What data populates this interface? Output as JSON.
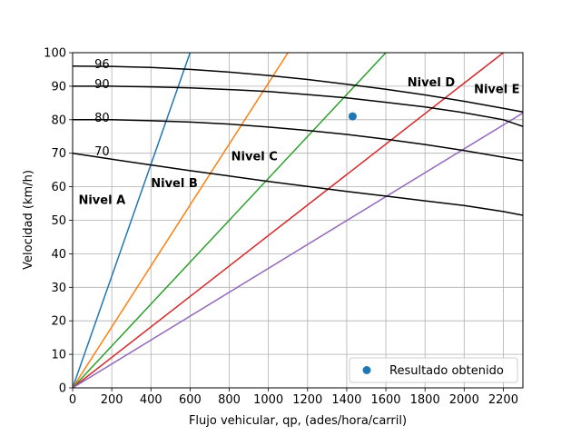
{
  "chart_data": {
    "type": "line",
    "title": "",
    "xlabel": "Flujo vehicular, qp, (ades/hora/carril)",
    "ylabel": "Velocidad (km/h)",
    "xlim": [
      0,
      2300
    ],
    "ylim": [
      0,
      100
    ],
    "xticks": [
      0,
      200,
      400,
      600,
      800,
      1000,
      1200,
      1400,
      1600,
      1800,
      2000,
      2200
    ],
    "yticks": [
      0,
      10,
      20,
      30,
      40,
      50,
      60,
      70,
      80,
      90,
      100
    ],
    "grid": true,
    "legend_placement": "lower-right",
    "speed_curves": [
      {
        "label": "96",
        "x": [
          0,
          200,
          400,
          600,
          800,
          1000,
          1200,
          1400,
          1600,
          1800,
          2000,
          2200,
          2300
        ],
        "y": [
          96.0,
          95.9,
          95.6,
          95.0,
          94.2,
          93.2,
          92.0,
          90.6,
          89.1,
          87.4,
          85.5,
          83.4,
          82.3
        ]
      },
      {
        "label": "90",
        "x": [
          0,
          200,
          400,
          600,
          800,
          1000,
          1200,
          1400,
          1600,
          1800,
          2000,
          2200,
          2300
        ],
        "y": [
          90.0,
          90.0,
          89.8,
          89.5,
          89.0,
          88.4,
          87.5,
          86.5,
          85.2,
          83.8,
          82.1,
          80.0,
          78.0
        ]
      },
      {
        "label": "80",
        "x": [
          0,
          200,
          400,
          600,
          800,
          1000,
          1200,
          1400,
          1600,
          1800,
          2000,
          2200,
          2300
        ],
        "y": [
          80.0,
          80.0,
          79.7,
          79.3,
          78.7,
          77.8,
          76.8,
          75.6,
          74.2,
          72.6,
          70.8,
          68.8,
          67.8
        ]
      },
      {
        "label": "70",
        "x": [
          0,
          200,
          400,
          600,
          800,
          1000,
          1200,
          1400,
          1600,
          1800,
          2000,
          2200,
          2300
        ],
        "y": [
          70.0,
          68.2,
          66.5,
          64.8,
          63.2,
          61.6,
          60.1,
          58.6,
          57.2,
          55.8,
          54.4,
          52.6,
          51.5
        ]
      }
    ],
    "los_lines": [
      {
        "label": "Nivel A",
        "color": "#1f77b4",
        "x": [
          0,
          600
        ],
        "y": [
          0,
          100
        ]
      },
      {
        "label": "Nivel B",
        "color": "#ff7f0e",
        "x": [
          0,
          1100
        ],
        "y": [
          0,
          100
        ]
      },
      {
        "label": "Nivel C",
        "color": "#2ca02c",
        "x": [
          0,
          1600
        ],
        "y": [
          0,
          100
        ]
      },
      {
        "label": "Nivel D",
        "color": "#d62728",
        "x": [
          0,
          2200
        ],
        "y": [
          0,
          100
        ]
      },
      {
        "label": "Nivel E",
        "color": "#9467bd",
        "x": [
          0,
          2300
        ],
        "y": [
          0,
          82
        ]
      }
    ],
    "level_labels": [
      {
        "text": "Nivel A",
        "x": 30,
        "y": 56
      },
      {
        "text": "Nivel B",
        "x": 400,
        "y": 61
      },
      {
        "text": "Nivel C",
        "x": 810,
        "y": 69
      },
      {
        "text": "Nivel D",
        "x": 1710,
        "y": 91
      },
      {
        "text": "Nivel E",
        "x": 2050,
        "y": 89
      }
    ],
    "curve_labels": [
      {
        "text": "96",
        "x": 150,
        "y": 96.5
      },
      {
        "text": "90",
        "x": 150,
        "y": 90.5
      },
      {
        "text": "80",
        "x": 150,
        "y": 80.5
      },
      {
        "text": "70",
        "x": 150,
        "y": 70.5
      }
    ],
    "scatter": {
      "name": "Resultado obtenido",
      "color": "#1f77b4",
      "points": [
        {
          "x": 1430,
          "y": 81
        }
      ]
    },
    "curve_color": "#000000",
    "grid_color": "#b0b0b0"
  }
}
